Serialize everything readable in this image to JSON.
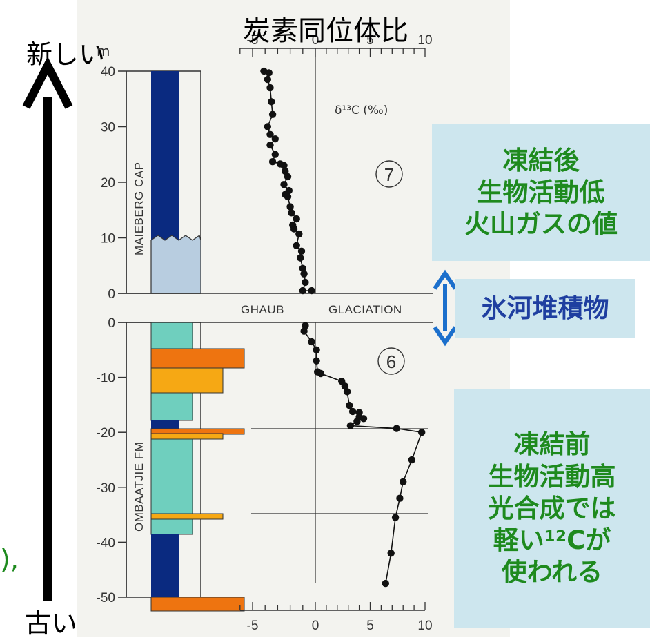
{
  "labels": {
    "top_title": "炭素同位体比",
    "newer": "新しい",
    "older": "古い",
    "m_unit": "m",
    "delta": "δ¹³C (‰)",
    "circle7": "⑦",
    "circle6": "⑥",
    "ghaub": "GHAUB",
    "glaciation": "GLACIATION",
    "maieberg": "MAIEBERG CAP",
    "ombaatjie": "OMBAATJIE FM",
    "left_fragment": "),"
  },
  "box_after": [
    "凍結後",
    "生物活動低",
    "火山ガスの値"
  ],
  "box_glacial": "氷河堆積物",
  "box_before": [
    "凍結前",
    "生物活動高",
    "光合成では",
    "軽い¹²Cが",
    "使われる"
  ],
  "colors": {
    "dark_blue": "#0a2a80",
    "light_blue": "#b8cde0",
    "teal": "#6fcfbe",
    "orange_dark": "#ee7410",
    "orange_light": "#f6a814",
    "arrow_blue": "#1b6fcc",
    "panel_bg": "#f3f3ef",
    "box_bg": "#cde6ee",
    "green_text": "#1e8a1e"
  },
  "chart_data": {
    "type": "scatter",
    "xlabel": "δ¹³C (‰)",
    "x_ticks": [
      "-5",
      "0",
      "5",
      "10"
    ],
    "xlim": [
      -6,
      10
    ],
    "upper_section": {
      "name": "MAIEBERG CAP",
      "ylim": [
        0,
        40
      ],
      "y_ticks": [
        "0",
        "10",
        "20",
        "30",
        "40"
      ],
      "points": [
        [
          -4.1,
          40
        ],
        [
          -3.7,
          39.7
        ],
        [
          -3.8,
          38.5
        ],
        [
          -3.6,
          37
        ],
        [
          -3.5,
          34.5
        ],
        [
          -3.4,
          32.2
        ],
        [
          -3.8,
          30
        ],
        [
          -3.6,
          28.6
        ],
        [
          -3.2,
          27.8
        ],
        [
          -3.6,
          26.7
        ],
        [
          -3.2,
          25
        ],
        [
          -3.4,
          23.7
        ],
        [
          -2.8,
          23.3
        ],
        [
          -2.5,
          23
        ],
        [
          -2.4,
          22
        ],
        [
          -2.2,
          21
        ],
        [
          -2.5,
          19.6
        ],
        [
          -2.1,
          18.5
        ],
        [
          -2.4,
          17.8
        ],
        [
          -2.2,
          17.4
        ],
        [
          -2.0,
          15.6
        ],
        [
          -1.9,
          14.5
        ],
        [
          -1.5,
          13.4
        ],
        [
          -1.8,
          12.3
        ],
        [
          -1.7,
          11.6
        ],
        [
          -1.3,
          10.7
        ],
        [
          -1.5,
          8.6
        ],
        [
          -1.1,
          7.6
        ],
        [
          -1.2,
          6.4
        ],
        [
          -1.0,
          4.5
        ],
        [
          -0.9,
          3.5
        ],
        [
          -0.8,
          2.0
        ],
        [
          -1.0,
          0.5
        ],
        [
          -0.3,
          0.5
        ]
      ]
    },
    "lower_section": {
      "name": "OMBAATJIE FM",
      "ylim": [
        -50,
        0
      ],
      "y_ticks": [
        "0",
        "-10",
        "-20",
        "-30",
        "-40",
        "-50"
      ],
      "points": [
        [
          -0.8,
          -0.6
        ],
        [
          -0.9,
          -1.6
        ],
        [
          -0.3,
          -3.5
        ],
        [
          0.1,
          -5
        ],
        [
          0.1,
          -7
        ],
        [
          0.2,
          -9
        ],
        [
          0.5,
          -9.3
        ],
        [
          2.4,
          -10.7
        ],
        [
          2.7,
          -11.6
        ],
        [
          2.9,
          -12.6
        ],
        [
          3.1,
          -15.1
        ],
        [
          3.4,
          -16.2
        ],
        [
          4.0,
          -16.4
        ],
        [
          4.0,
          -17.2
        ],
        [
          4.4,
          -17.5
        ],
        [
          3.8,
          -18.0
        ],
        [
          3.2,
          -18.8
        ],
        [
          7.4,
          -19.3
        ],
        [
          9.7,
          -20.0
        ],
        [
          8.8,
          -25
        ],
        [
          8.0,
          -29
        ],
        [
          7.7,
          -32
        ],
        [
          7.3,
          -35.5
        ],
        [
          6.9,
          -42
        ],
        [
          6.4,
          -47.5
        ]
      ]
    }
  }
}
